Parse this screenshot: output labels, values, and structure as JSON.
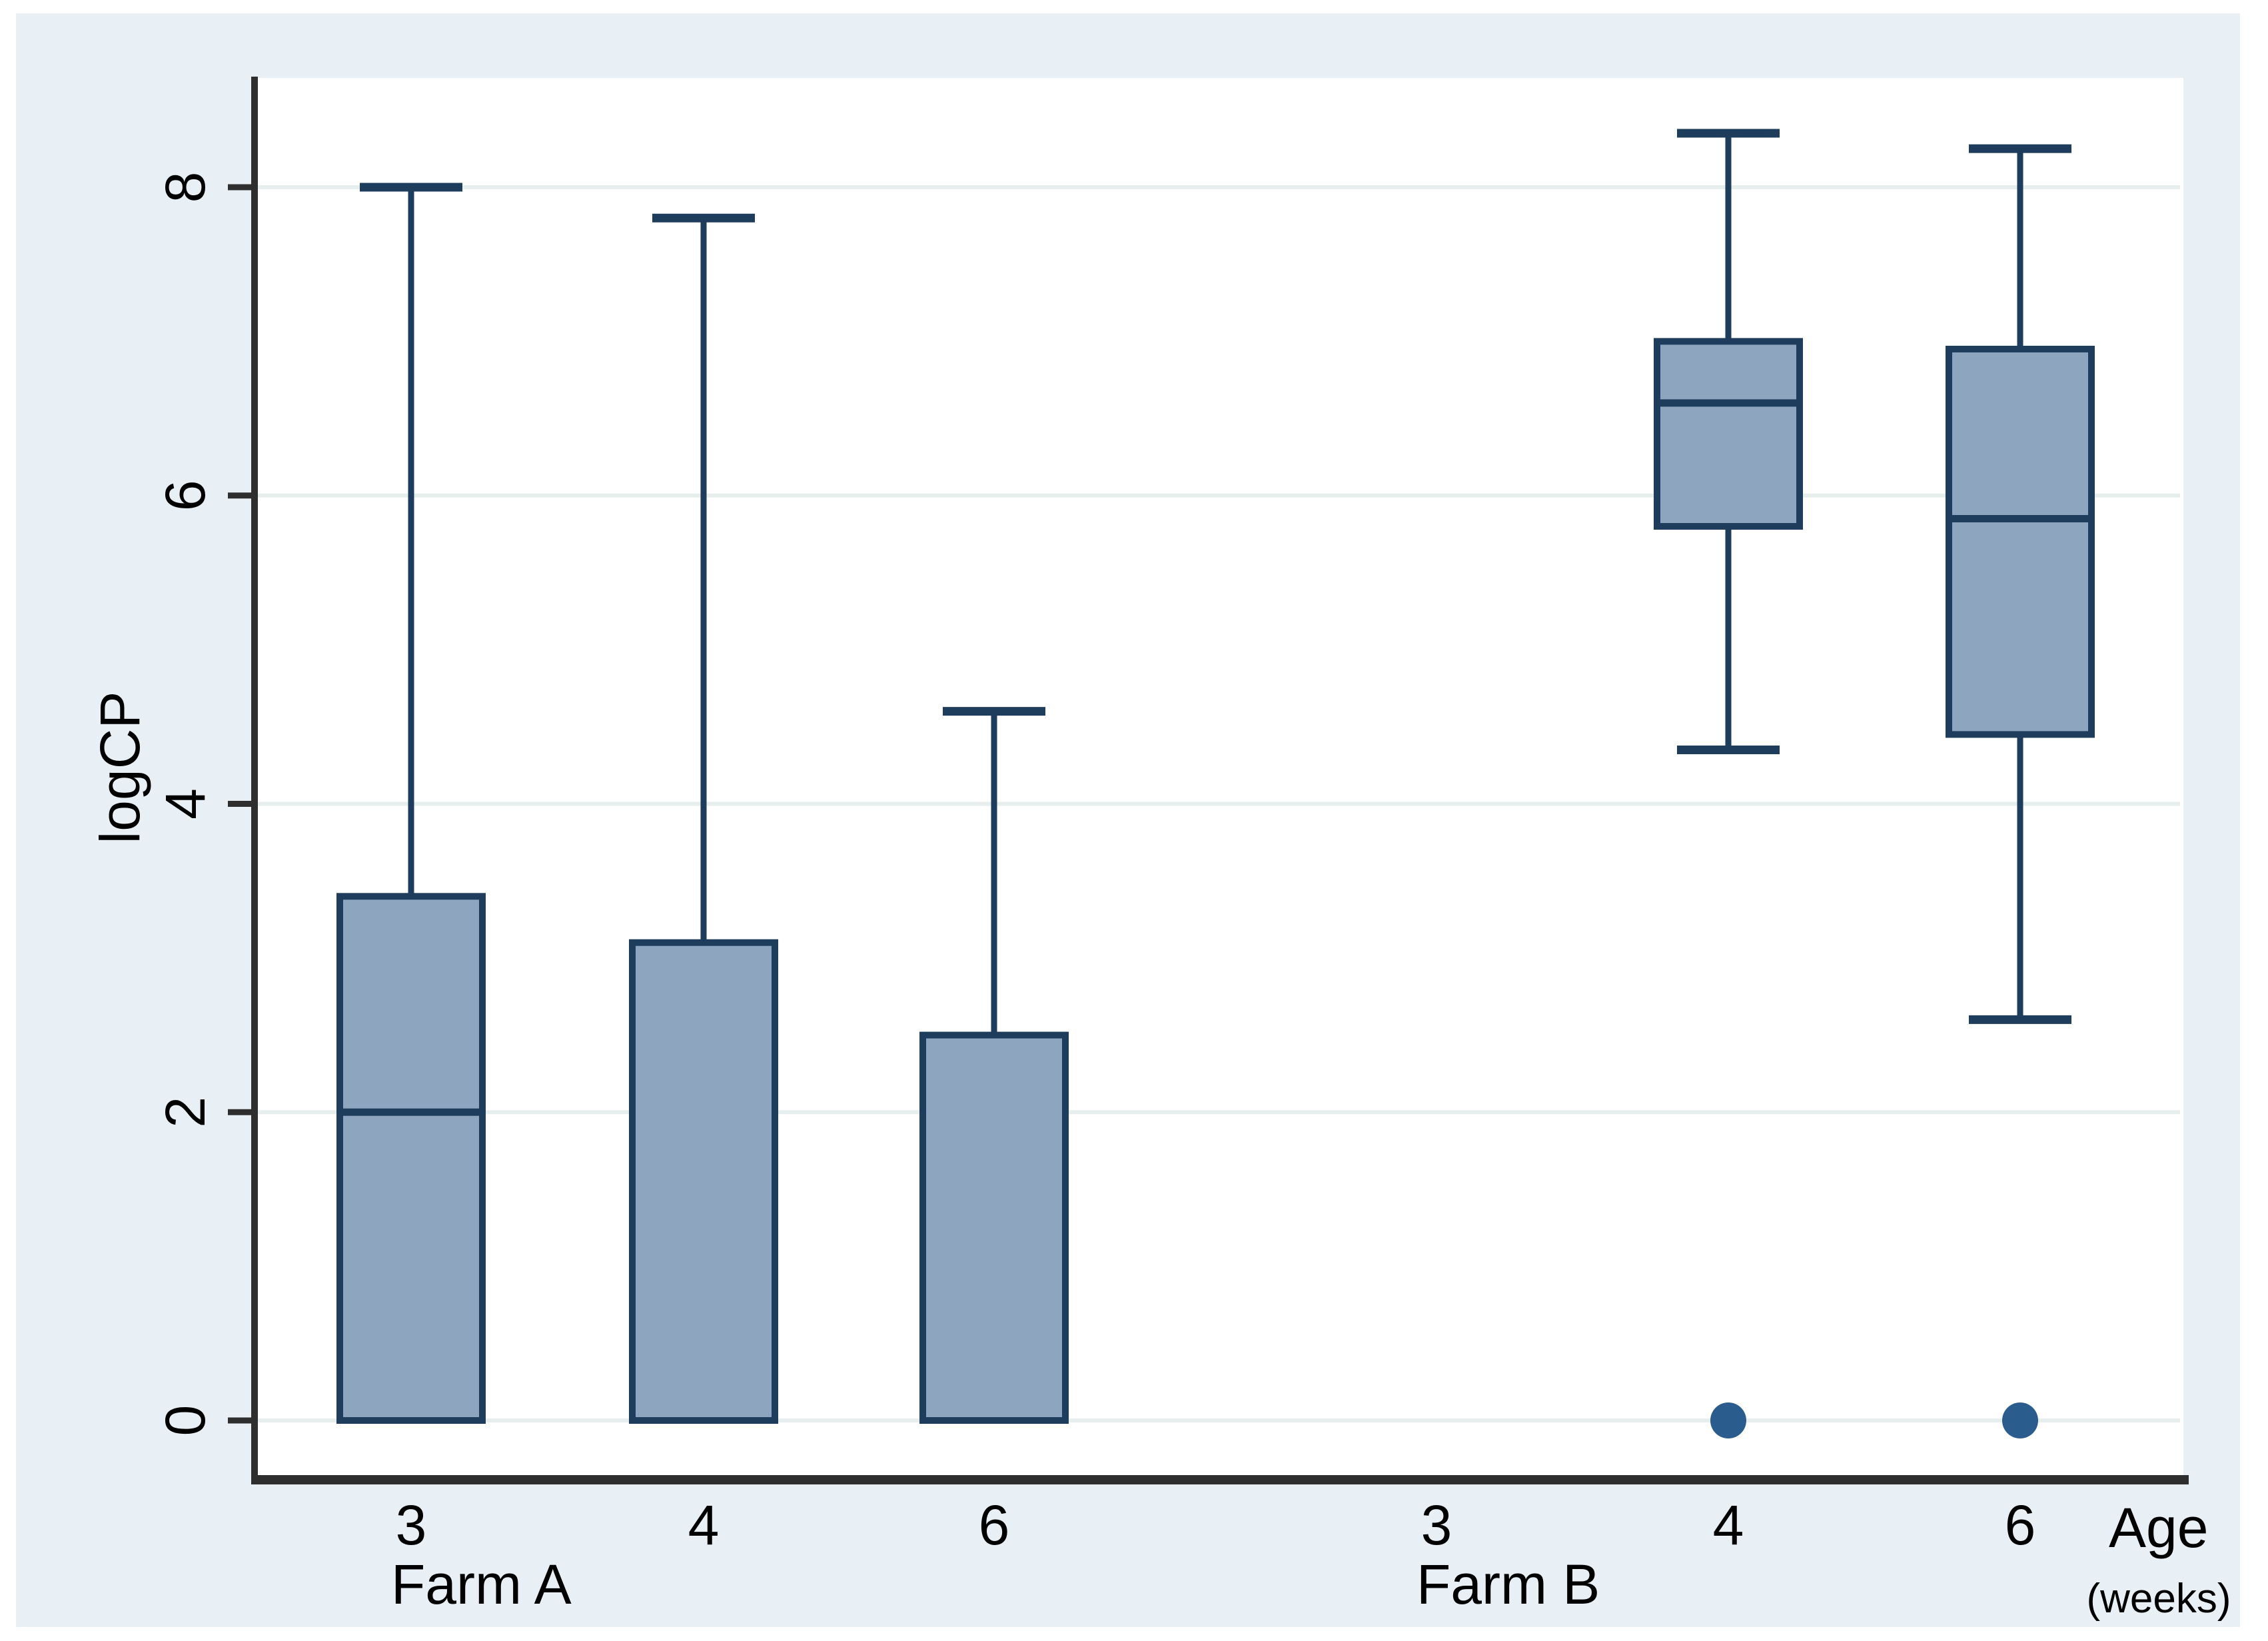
{
  "figure": {
    "background": "#ffffff",
    "canvas_color": "#e9f0f5",
    "plot_bg": "#ffffff",
    "grid_color": "#e7eeee",
    "axis_color": "#2e2e2e",
    "box_fill": "#8da5bf",
    "box_stroke": "#1e3c5c",
    "outlier_color": "#2a5c8e",
    "text_color": "#000000"
  },
  "chart_data": {
    "type": "box",
    "title": "",
    "ylabel": "logCP",
    "xlabel": "Age",
    "xlabel_unit": "(weeks)",
    "y_ticks": [
      0,
      2,
      4,
      6,
      8
    ],
    "ylim": [
      -0.4,
      8.7
    ],
    "grid": true,
    "legend": "none",
    "groups": [
      {
        "label": "Farm A",
        "boxes": [
          {
            "age": "3",
            "min": 0,
            "q1": 0,
            "median": 2.0,
            "q3": 3.4,
            "max": 8.0,
            "outliers": []
          },
          {
            "age": "4",
            "min": 0,
            "q1": 0,
            "median": 0,
            "q3": 3.1,
            "max": 7.8,
            "outliers": []
          },
          {
            "age": "6",
            "min": 0,
            "q1": 0,
            "median": 0,
            "q3": 2.5,
            "max": 4.6,
            "outliers": []
          }
        ]
      },
      {
        "label": "Farm B",
        "boxes": [
          {
            "age": "3",
            "min": null,
            "q1": null,
            "median": null,
            "q3": null,
            "max": null,
            "outliers": []
          },
          {
            "age": "4",
            "min": 4.35,
            "q1": 5.8,
            "median": 6.6,
            "q3": 7.0,
            "max": 8.35,
            "outliers": [
              0
            ]
          },
          {
            "age": "6",
            "min": 2.6,
            "q1": 4.45,
            "median": 5.85,
            "q3": 6.95,
            "max": 8.25,
            "outliers": [
              0
            ]
          }
        ]
      }
    ]
  }
}
